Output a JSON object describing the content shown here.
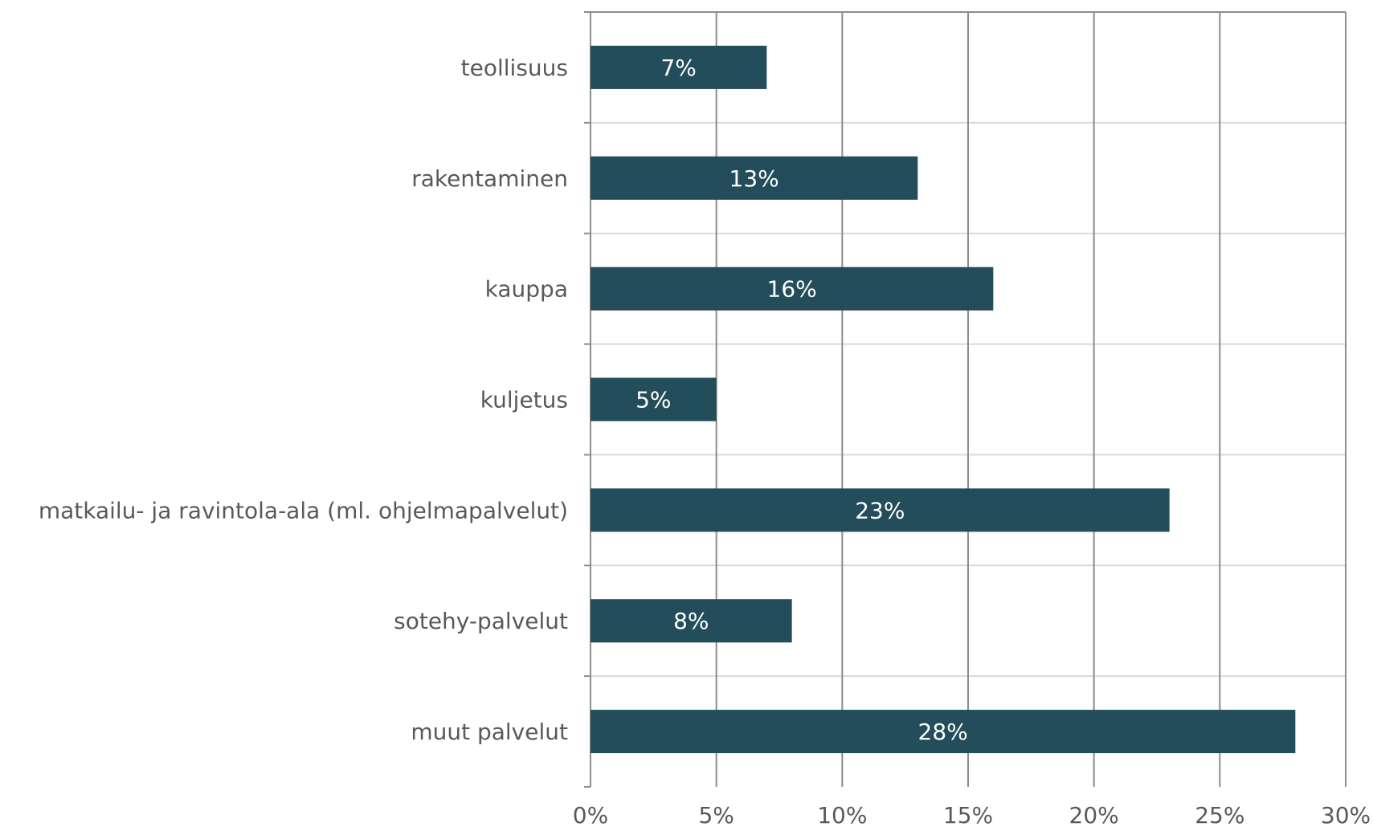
{
  "chart_data": {
    "type": "bar",
    "orientation": "horizontal",
    "title": "",
    "xlabel": "",
    "ylabel": "",
    "categories": [
      "teollisuus",
      "rakentaminen",
      "kauppa",
      "kuljetus",
      "matkailu- ja ravintola-ala (ml. ohjelmapalvelut)",
      "sotehy-palvelut",
      "muut palvelut"
    ],
    "values": [
      7,
      13,
      16,
      5,
      23,
      8,
      28
    ],
    "data_labels": [
      "7%",
      "13%",
      "16%",
      "5%",
      "23%",
      "8%",
      "28%"
    ],
    "xlim": [
      0,
      30
    ],
    "x_ticks": [
      0,
      5,
      10,
      15,
      20,
      25,
      30
    ],
    "x_tick_labels": [
      "0%",
      "5%",
      "10%",
      "15%",
      "20%",
      "25%",
      "30%"
    ],
    "grid": true,
    "legend": "none",
    "colors": {
      "bar": "#234d5a",
      "bar_label": "#ffffff",
      "category_text": "#595959",
      "tick_text": "#595959",
      "gridline": "#8c8c8c",
      "axis": "#8c8c8c",
      "separator": "#d9d9d9"
    }
  }
}
